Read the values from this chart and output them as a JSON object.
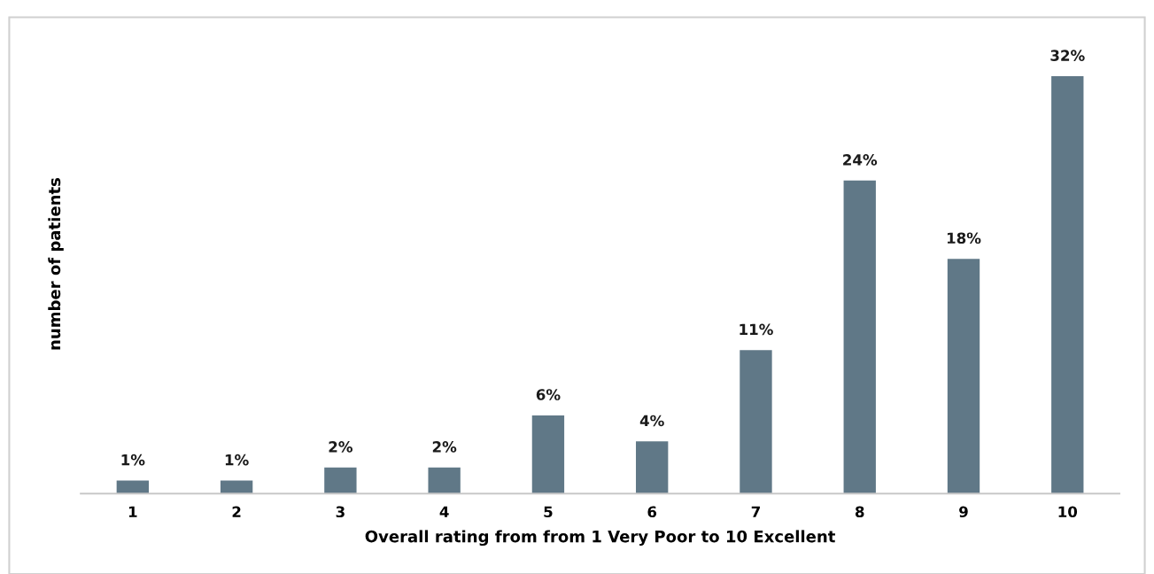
{
  "chart_data": {
    "type": "bar",
    "xlabel": "Overall rating from from 1 Very Poor to 10 Excellent",
    "ylabel": "number of patients",
    "categories": [
      "1",
      "2",
      "3",
      "4",
      "5",
      "6",
      "7",
      "8",
      "9",
      "10"
    ],
    "values": [
      1,
      1,
      2,
      2,
      6,
      4,
      11,
      24,
      18,
      32
    ],
    "value_labels": [
      "1%",
      "1%",
      "2%",
      "2%",
      "6%",
      "4%",
      "11%",
      "24%",
      "18%",
      "32%"
    ],
    "color": "#607887",
    "relative": false,
    "grid": false,
    "legend": false
  }
}
